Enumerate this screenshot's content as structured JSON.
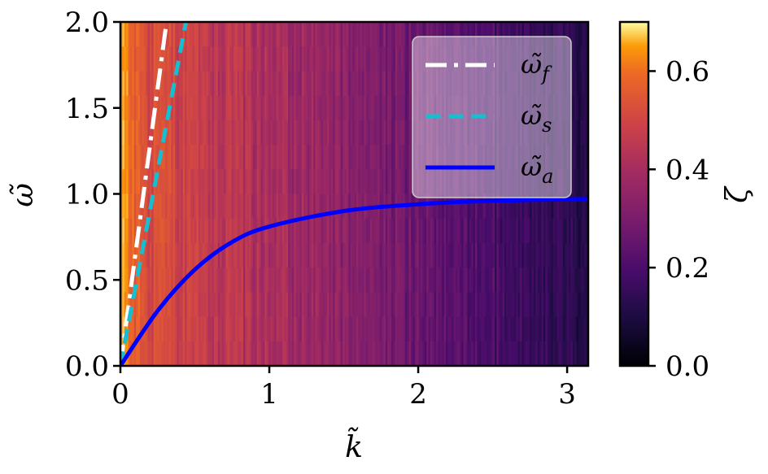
{
  "chart_data": {
    "type": "heatmap",
    "title": "",
    "xlabel": "k̃",
    "ylabel": "ω̃",
    "xlim": [
      0,
      3.14159
    ],
    "ylim": [
      0,
      2.0
    ],
    "x_ticks": [
      "0",
      "1",
      "2",
      "3"
    ],
    "y_ticks": [
      "0.0",
      "0.5",
      "1.0",
      "1.5",
      "2.0"
    ],
    "colorbar": {
      "label": "ζ",
      "range": [
        0,
        0.7
      ],
      "ticks": [
        "0.0",
        "0.2",
        "0.4",
        "0.6"
      ],
      "colormap": "inferno"
    },
    "legend_position": "top-right",
    "series": [
      {
        "name": "ω̃_f",
        "label_base": "ω̃",
        "label_sub": "f",
        "color": "#ffffff",
        "style": "dash-dot",
        "x": [
          0,
          0.31
        ],
        "y": [
          0,
          2.0
        ]
      },
      {
        "name": "ω̃_s",
        "label_base": "ω̃",
        "label_sub": "s",
        "color": "#17becf",
        "style": "dashed",
        "x": [
          0,
          0.44
        ],
        "y": [
          0,
          2.0
        ]
      },
      {
        "name": "ω̃_a",
        "label_base": "ω̃",
        "label_sub": "a",
        "color": "#0000ff",
        "style": "solid",
        "x": [
          0,
          0.25,
          0.5,
          0.75,
          1.0,
          1.5,
          2.0,
          2.5,
          3.14
        ],
        "y": [
          0,
          0.32,
          0.56,
          0.72,
          0.81,
          0.9,
          0.94,
          0.96,
          0.97
        ]
      }
    ]
  }
}
